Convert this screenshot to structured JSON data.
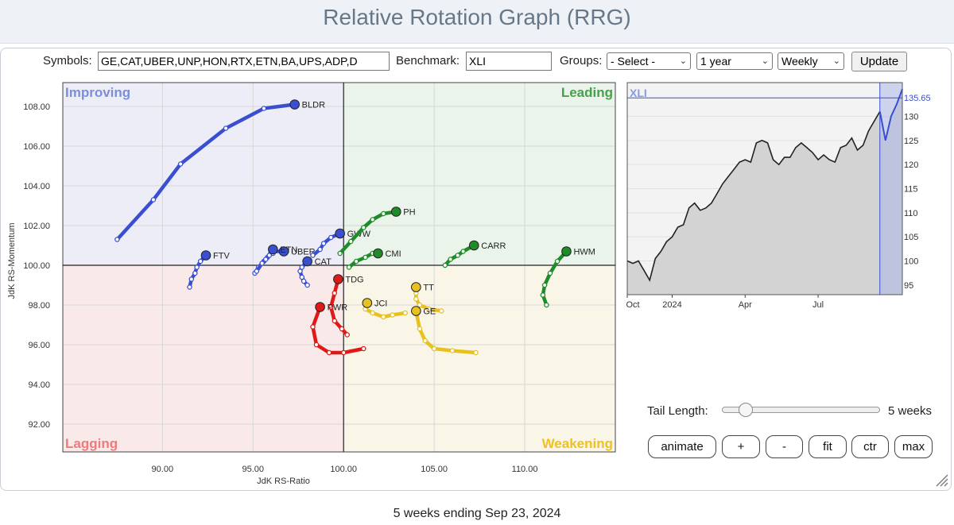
{
  "header": {
    "title": "Relative Rotation Graph (RRG)"
  },
  "controls": {
    "symbols_label": "Symbols:",
    "symbols_value": "GE,CAT,UBER,UNP,HON,RTX,ETN,BA,UPS,ADP,D",
    "benchmark_label": "Benchmark:",
    "benchmark_value": "XLI",
    "groups_label": "Groups:",
    "groups_value": "- Select -",
    "period_value": "1 year",
    "interval_value": "Weekly",
    "update_label": "Update"
  },
  "chart_data": [
    {
      "type": "scatter",
      "xlabel": "JdK RS-Ratio",
      "ylabel": "JdK RS-Momentum",
      "xlim": [
        84.5,
        115.0
      ],
      "ylim": [
        90.6,
        109.2
      ],
      "x_ticks": [
        90,
        95,
        100,
        105,
        110
      ],
      "x_tick_labels": [
        "90.00",
        "95.00",
        "100.00",
        "105.00",
        "110.00"
      ],
      "y_ticks": [
        92,
        94,
        96,
        98,
        100,
        102,
        104,
        106,
        108
      ],
      "y_tick_labels": [
        "92.00",
        "94.00",
        "96.00",
        "98.00",
        "100.00",
        "102.00",
        "104.00",
        "106.00",
        "108.00"
      ],
      "grid": true,
      "quadrants": [
        {
          "name": "Improving",
          "color": "#7b8fd9"
        },
        {
          "name": "Leading",
          "color": "#46a24a"
        },
        {
          "name": "Lagging",
          "color": "#f07a7a"
        },
        {
          "name": "Weakening",
          "color": "#f0c020"
        }
      ],
      "series": [
        {
          "name": "BLDR",
          "color": "#3a4fd0",
          "points": [
            [
              87.5,
              101.3
            ],
            [
              89.5,
              103.3
            ],
            [
              91.0,
              105.1
            ],
            [
              93.5,
              106.9
            ],
            [
              95.6,
              107.9
            ],
            [
              97.3,
              108.1
            ]
          ]
        },
        {
          "name": "FTV",
          "color": "#3a4fd0",
          "points": [
            [
              91.5,
              98.9
            ],
            [
              91.6,
              99.3
            ],
            [
              91.8,
              99.6
            ],
            [
              91.9,
              99.9
            ],
            [
              92.1,
              100.2
            ],
            [
              92.4,
              100.5
            ]
          ]
        },
        {
          "name": "UBER",
          "color": "#3a4fd0",
          "points": [
            [
              95.1,
              99.6
            ],
            [
              95.3,
              99.9
            ],
            [
              95.6,
              100.2
            ],
            [
              95.8,
              100.4
            ],
            [
              96.0,
              100.7
            ],
            [
              96.7,
              100.7
            ]
          ]
        },
        {
          "name": "ETN",
          "color": "#3a4fd0",
          "points": [
            [
              95.2,
              99.7
            ],
            [
              95.5,
              100.1
            ],
            [
              95.7,
              100.3
            ],
            [
              95.9,
              100.5
            ],
            [
              96.1,
              100.6
            ],
            [
              96.1,
              100.8
            ]
          ]
        },
        {
          "name": "CAT",
          "color": "#3a4fd0",
          "points": [
            [
              98.0,
              99.0
            ],
            [
              97.8,
              99.2
            ],
            [
              97.7,
              99.4
            ],
            [
              97.6,
              99.7
            ],
            [
              97.7,
              99.9
            ],
            [
              98.0,
              100.2
            ]
          ]
        },
        {
          "name": "GWW",
          "color": "#3a4fd0",
          "points": [
            [
              98.3,
              100.5
            ],
            [
              98.7,
              100.8
            ],
            [
              98.9,
              101.1
            ],
            [
              99.3,
              101.4
            ],
            [
              99.8,
              101.6
            ]
          ]
        },
        {
          "name": "PH",
          "color": "#1f8c2a",
          "points": [
            [
              99.8,
              100.6
            ],
            [
              100.4,
              101.2
            ],
            [
              101.1,
              101.9
            ],
            [
              101.6,
              102.3
            ],
            [
              102.2,
              102.6
            ],
            [
              102.9,
              102.7
            ]
          ]
        },
        {
          "name": "CMI",
          "color": "#1f8c2a",
          "points": [
            [
              100.3,
              99.9
            ],
            [
              100.7,
              100.2
            ],
            [
              101.2,
              100.4
            ],
            [
              101.6,
              100.6
            ],
            [
              101.9,
              100.6
            ]
          ]
        },
        {
          "name": "CARR",
          "color": "#1f8c2a",
          "points": [
            [
              105.6,
              100.0
            ],
            [
              105.9,
              100.3
            ],
            [
              106.3,
              100.5
            ],
            [
              106.6,
              100.7
            ],
            [
              107.2,
              101.0
            ]
          ]
        },
        {
          "name": "HWM",
          "color": "#1f8c2a",
          "points": [
            [
              111.2,
              98.0
            ],
            [
              111.0,
              98.5
            ],
            [
              111.1,
              99.0
            ],
            [
              111.4,
              99.6
            ],
            [
              111.8,
              100.2
            ],
            [
              112.3,
              100.7
            ]
          ]
        },
        {
          "name": "TDG",
          "color": "#e01818",
          "points": [
            [
              100.2,
              96.5
            ],
            [
              99.9,
              96.8
            ],
            [
              99.5,
              97.2
            ],
            [
              99.3,
              97.9
            ],
            [
              99.5,
              98.6
            ],
            [
              99.7,
              99.3
            ]
          ]
        },
        {
          "name": "PWR",
          "color": "#e01818",
          "points": [
            [
              101.1,
              95.8
            ],
            [
              100.0,
              95.6
            ],
            [
              99.2,
              95.6
            ],
            [
              98.5,
              96.0
            ],
            [
              98.3,
              96.9
            ],
            [
              98.7,
              97.9
            ]
          ]
        },
        {
          "name": "JCI",
          "color": "#e8c020",
          "points": [
            [
              103.4,
              97.6
            ],
            [
              102.7,
              97.5
            ],
            [
              102.2,
              97.4
            ],
            [
              101.6,
              97.6
            ],
            [
              101.2,
              97.8
            ],
            [
              101.3,
              98.1
            ]
          ]
        },
        {
          "name": "TT",
          "color": "#e8c020",
          "points": [
            [
              105.4,
              97.7
            ],
            [
              104.7,
              97.8
            ],
            [
              104.2,
              98.0
            ],
            [
              104.0,
              98.3
            ],
            [
              104.0,
              98.6
            ],
            [
              104.0,
              98.9
            ]
          ]
        },
        {
          "name": "GE",
          "color": "#e8c020",
          "points": [
            [
              107.3,
              95.6
            ],
            [
              106.0,
              95.7
            ],
            [
              105.0,
              95.8
            ],
            [
              104.5,
              96.2
            ],
            [
              104.2,
              96.8
            ],
            [
              104.0,
              97.7
            ]
          ]
        }
      ]
    },
    {
      "type": "area",
      "title": "XLI",
      "x_tick_labels": [
        "Oct",
        "2024",
        "Apr",
        "Jul"
      ],
      "y_ticks": [
        95,
        100,
        105,
        110,
        115,
        120,
        125,
        130
      ],
      "last_value": "135.65",
      "ylim": [
        93,
        137
      ],
      "values": [
        100,
        99.5,
        100,
        98,
        96,
        100.5,
        102,
        104,
        105,
        107,
        107.5,
        111,
        112,
        110.5,
        111,
        112,
        114,
        116,
        117.5,
        119,
        120.5,
        121,
        120.5,
        124.5,
        125,
        124.5,
        121,
        120,
        121.5,
        121.5,
        123.5,
        124.5,
        123.5,
        122.5,
        121,
        122,
        121,
        120.5,
        123.5,
        124,
        125.5,
        123,
        124,
        127,
        129,
        131,
        125,
        130,
        132.5,
        135.65
      ],
      "highlight_start_index": 45
    }
  ],
  "tail": {
    "label": "Tail Length:",
    "value_text": "5 weeks",
    "weeks": 5,
    "max_weeks": 52
  },
  "buttons": {
    "animate": "animate",
    "plus": "+",
    "minus": "-",
    "fit": "fit",
    "ctr": "ctr",
    "max": "max"
  },
  "footer": {
    "caption": "5 weeks ending Sep 23, 2024"
  },
  "colors": {
    "accent": "#3a4fd0",
    "leading": "#1f8c2a",
    "lagging": "#e01818",
    "weakening": "#e8c020"
  }
}
